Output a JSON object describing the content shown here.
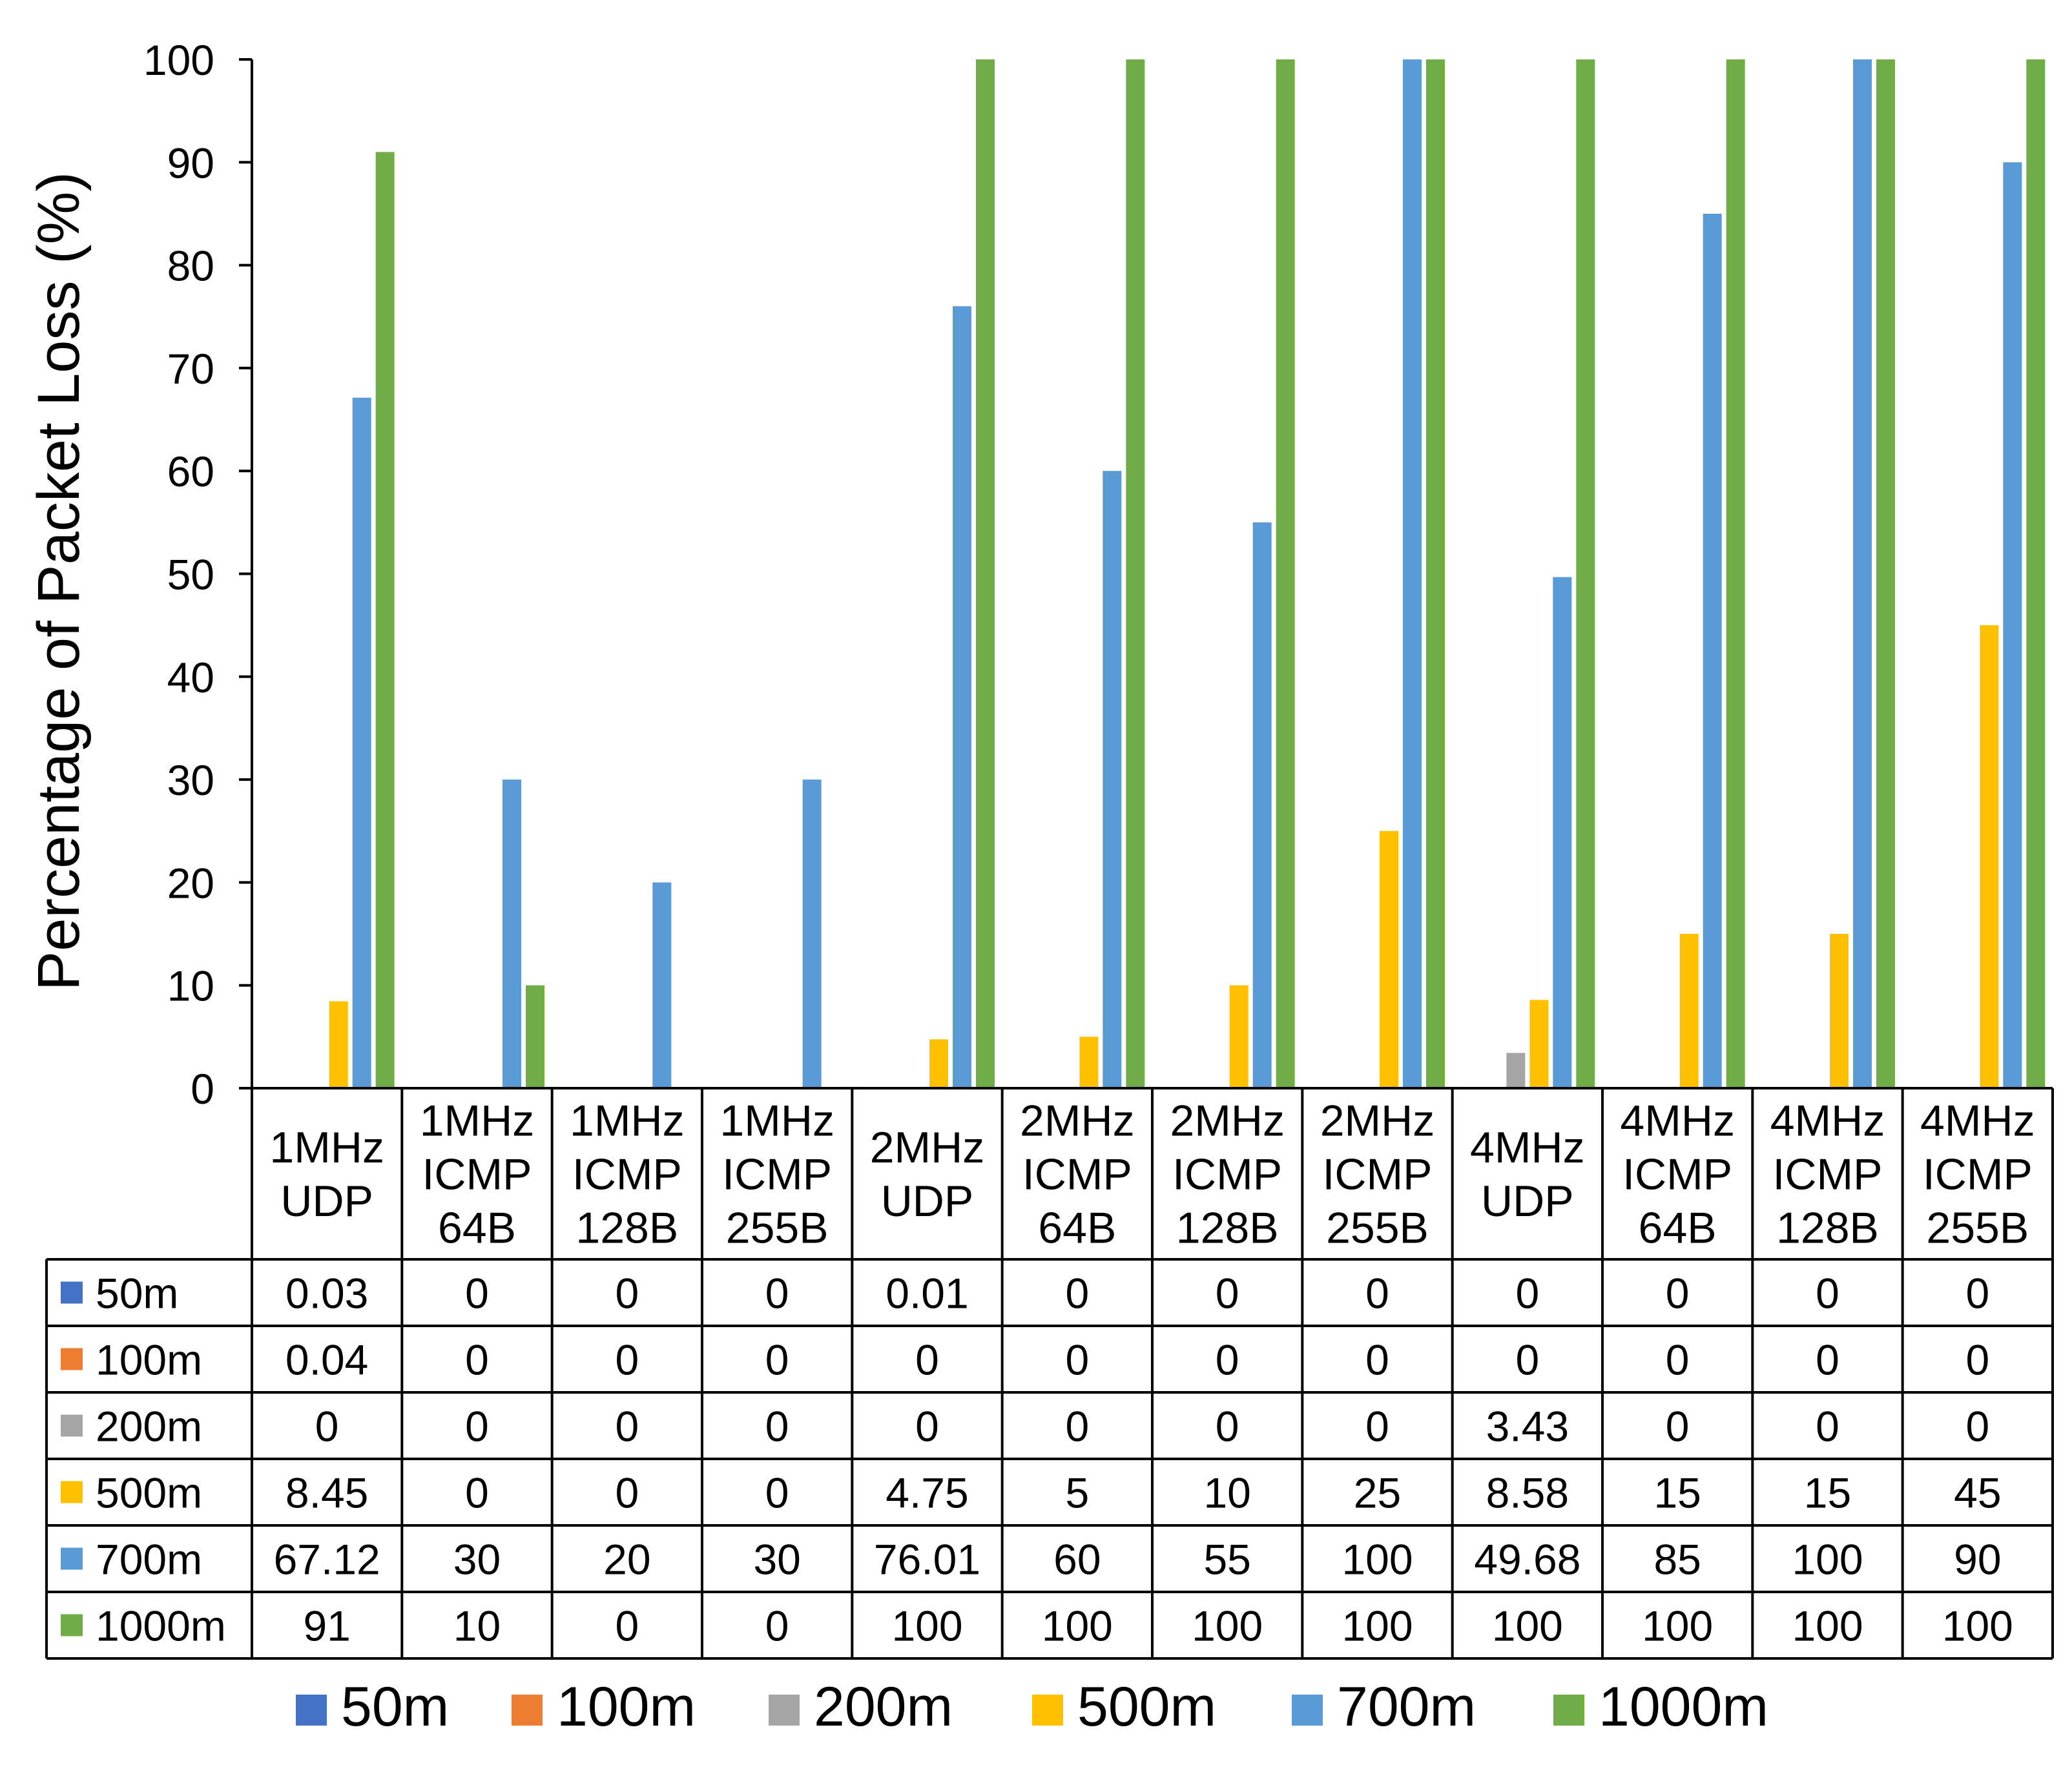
{
  "chart_data": {
    "type": "bar",
    "title": "",
    "xlabel": "",
    "ylabel": "Percentage of Packet Loss (%)",
    "ylim": [
      0,
      100
    ],
    "yticks": [
      0,
      10,
      20,
      30,
      40,
      50,
      60,
      70,
      80,
      90,
      100
    ],
    "grid": false,
    "legend": "bottom",
    "data_table": true,
    "categories": [
      [
        "1MHz",
        "UDP"
      ],
      [
        "1MHz",
        "ICMP",
        "64B"
      ],
      [
        "1MHz",
        "ICMP",
        "128B"
      ],
      [
        "1MHz",
        "ICMP",
        "255B"
      ],
      [
        "2MHz",
        "UDP"
      ],
      [
        "2MHz",
        "ICMP",
        "64B"
      ],
      [
        "2MHz",
        "ICMP",
        "128B"
      ],
      [
        "2MHz",
        "ICMP",
        "255B"
      ],
      [
        "4MHz",
        "UDP"
      ],
      [
        "4MHz",
        "ICMP",
        "64B"
      ],
      [
        "4MHz",
        "ICMP",
        "128B"
      ],
      [
        "4MHz",
        "ICMP",
        "255B"
      ]
    ],
    "series": [
      {
        "name": "50m",
        "color": "#4472C4",
        "values": [
          0.03,
          0,
          0,
          0,
          0.01,
          0,
          0,
          0,
          0,
          0,
          0,
          0
        ],
        "labels": [
          "0.03",
          "0",
          "0",
          "0",
          "0.01",
          "0",
          "0",
          "0",
          "0",
          "0",
          "0",
          "0"
        ]
      },
      {
        "name": "100m",
        "color": "#ED7D31",
        "values": [
          0.04,
          0,
          0,
          0,
          0,
          0,
          0,
          0,
          0,
          0,
          0,
          0
        ],
        "labels": [
          "0.04",
          "0",
          "0",
          "0",
          "0",
          "0",
          "0",
          "0",
          "0",
          "0",
          "0",
          "0"
        ]
      },
      {
        "name": "200m",
        "color": "#A5A5A5",
        "values": [
          0,
          0,
          0,
          0,
          0,
          0,
          0,
          0,
          3.43,
          0,
          0,
          0
        ],
        "labels": [
          "0",
          "0",
          "0",
          "0",
          "0",
          "0",
          "0",
          "0",
          "3.43",
          "0",
          "0",
          "0"
        ]
      },
      {
        "name": "500m",
        "color": "#FFC000",
        "values": [
          8.45,
          0,
          0,
          0,
          4.75,
          5,
          10,
          25,
          8.58,
          15,
          15,
          45
        ],
        "labels": [
          "8.45",
          "0",
          "0",
          "0",
          "4.75",
          "5",
          "10",
          "25",
          "8.58",
          "15",
          "15",
          "45"
        ]
      },
      {
        "name": "700m",
        "color": "#5B9BD5",
        "values": [
          67.12,
          30,
          20,
          30,
          76.01,
          60,
          55,
          100,
          49.68,
          85,
          100,
          90
        ],
        "labels": [
          "67.12",
          "30",
          "20",
          "30",
          "76.01",
          "60",
          "55",
          "100",
          "49.68",
          "85",
          "100",
          "90"
        ]
      },
      {
        "name": "1000m",
        "color": "#70AD47",
        "values": [
          91,
          10,
          0,
          0,
          100,
          100,
          100,
          100,
          100,
          100,
          100,
          100
        ],
        "labels": [
          "91",
          "10",
          "0",
          "0",
          "100",
          "100",
          "100",
          "100",
          "100",
          "100",
          "100",
          "100"
        ]
      }
    ]
  }
}
